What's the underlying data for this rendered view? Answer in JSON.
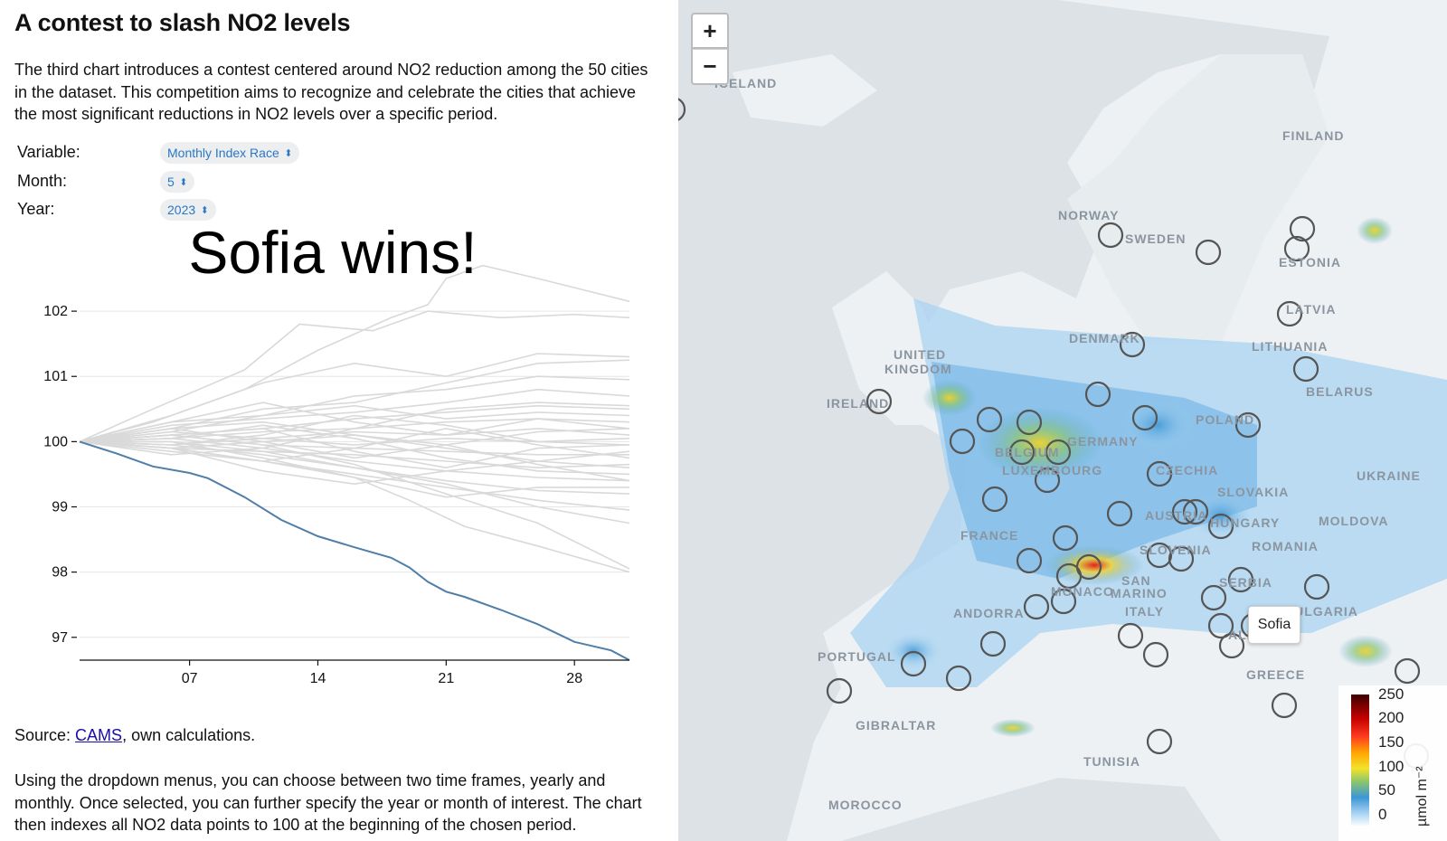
{
  "article": {
    "title": "A contest to slash NO2 levels",
    "intro": "The third chart introduces a contest centered around NO2 reduction among the 50 cities in the dataset. This competition aims to recognize and celebrate the cities that achieve the most significant reductions in NO2 levels over a specific period.",
    "source_prefix": "Source: ",
    "source_link": "CAMS",
    "source_suffix": ", own calculations.",
    "outro": "Using the dropdown menus, you can choose between two time frames, yearly and monthly. Once selected, you can further specify the year or month of interest. The chart then indexes all NO2 data points to 100 at the beginning of the chosen period."
  },
  "controls": {
    "variable_label": "Variable:",
    "variable_value": "Monthly Index Race",
    "month_label": "Month:",
    "month_value": "5",
    "year_label": "Year:",
    "year_value": "2023"
  },
  "chart_data": {
    "type": "line",
    "winner_text": "Sofia wins!",
    "x_ticks": [
      "07",
      "14",
      "21",
      "28"
    ],
    "x_range": [
      1,
      31
    ],
    "y_ticks": [
      97,
      98,
      99,
      100,
      101,
      102
    ],
    "y_range": [
      96.65,
      102.75
    ],
    "highlight_color": "#4f7ea8",
    "other_color": "#d9d9d9",
    "highlight": {
      "name": "Sofia",
      "x": [
        1,
        3,
        5,
        7,
        8,
        10,
        12,
        14,
        16,
        18,
        19,
        20,
        21,
        22,
        24,
        26,
        28,
        30,
        31
      ],
      "y": [
        100,
        99.82,
        99.62,
        99.52,
        99.44,
        99.15,
        98.8,
        98.55,
        98.38,
        98.22,
        98.07,
        97.85,
        97.7,
        97.62,
        97.42,
        97.2,
        96.93,
        96.8,
        96.65
      ]
    },
    "others": [
      {
        "x": [
          1,
          5,
          10,
          14,
          18,
          20,
          21,
          23,
          26,
          31
        ],
        "y": [
          100,
          100.3,
          100.8,
          101.4,
          101.9,
          102.1,
          102.5,
          102.7,
          102.5,
          102.15
        ]
      },
      {
        "x": [
          1,
          5,
          10,
          13,
          17,
          20,
          24,
          28,
          31
        ],
        "y": [
          100,
          100.5,
          101.1,
          101.8,
          101.7,
          102.0,
          101.9,
          101.95,
          101.9
        ]
      },
      {
        "x": [
          1,
          6,
          11,
          16,
          21,
          26,
          31
        ],
        "y": [
          100,
          100.4,
          100.9,
          101.2,
          101.0,
          101.35,
          101.3
        ]
      },
      {
        "x": [
          1,
          6,
          11,
          16,
          21,
          26,
          31
        ],
        "y": [
          100,
          100.2,
          100.5,
          100.6,
          100.9,
          101.2,
          101.25
        ]
      },
      {
        "x": [
          1,
          6,
          11,
          16,
          21,
          26,
          31
        ],
        "y": [
          100,
          100.3,
          100.4,
          100.7,
          100.8,
          101.0,
          100.95
        ]
      },
      {
        "x": [
          1,
          6,
          11,
          16,
          21,
          26,
          31
        ],
        "y": [
          100,
          100.25,
          100.35,
          100.45,
          100.6,
          100.8,
          100.7
        ]
      },
      {
        "x": [
          1,
          6,
          11,
          16,
          21,
          26,
          31
        ],
        "y": [
          100,
          100.1,
          100.2,
          100.35,
          100.45,
          100.55,
          100.5
        ]
      },
      {
        "x": [
          1,
          6,
          11,
          16,
          21,
          26,
          31
        ],
        "y": [
          100,
          100.05,
          100.15,
          100.2,
          100.3,
          100.35,
          100.3
        ]
      },
      {
        "x": [
          1,
          6,
          11,
          16,
          21,
          26,
          31
        ],
        "y": [
          100,
          100.15,
          100.05,
          100.15,
          100.1,
          100.2,
          100.1
        ]
      },
      {
        "x": [
          1,
          6,
          11,
          16,
          21,
          26,
          31
        ],
        "y": [
          100,
          99.95,
          100.05,
          99.95,
          100.05,
          100.0,
          99.95
        ]
      },
      {
        "x": [
          1,
          6,
          11,
          16,
          21,
          26,
          31
        ],
        "y": [
          100,
          100.1,
          99.95,
          99.9,
          99.85,
          99.8,
          99.8
        ]
      },
      {
        "x": [
          1,
          6,
          11,
          16,
          21,
          26,
          31
        ],
        "y": [
          100,
          99.9,
          99.85,
          99.8,
          99.7,
          99.6,
          99.65
        ]
      },
      {
        "x": [
          1,
          6,
          11,
          16,
          21,
          26,
          31
        ],
        "y": [
          100,
          100.05,
          99.9,
          99.7,
          99.55,
          99.45,
          99.4
        ]
      },
      {
        "x": [
          1,
          6,
          11,
          16,
          21,
          26,
          31
        ],
        "y": [
          100,
          99.95,
          99.8,
          99.6,
          99.4,
          99.25,
          99.2
        ]
      },
      {
        "x": [
          1,
          6,
          11,
          16,
          21,
          26,
          31
        ],
        "y": [
          100,
          99.9,
          99.7,
          99.5,
          99.3,
          99.1,
          98.95
        ]
      },
      {
        "x": [
          1,
          6,
          11,
          16,
          21,
          26,
          31
        ],
        "y": [
          100,
          100.0,
          99.85,
          99.6,
          99.35,
          99.0,
          98.75
        ]
      },
      {
        "x": [
          1,
          6,
          11,
          16,
          19,
          22,
          26,
          31
        ],
        "y": [
          100,
          99.9,
          99.7,
          99.45,
          99.1,
          98.7,
          98.4,
          98.0
        ]
      },
      {
        "x": [
          1,
          6,
          11,
          16,
          21,
          26,
          31
        ],
        "y": [
          100,
          100.1,
          99.95,
          99.65,
          99.2,
          98.75,
          98.05
        ]
      },
      {
        "x": [
          1,
          6,
          11,
          16,
          21,
          26,
          31
        ],
        "y": [
          100,
          100.2,
          100.3,
          100.1,
          99.9,
          99.7,
          99.85
        ]
      },
      {
        "x": [
          1,
          6,
          11,
          16,
          21,
          26,
          31
        ],
        "y": [
          100,
          100.3,
          100.6,
          100.3,
          100.1,
          100.35,
          100.2
        ]
      },
      {
        "x": [
          1,
          6,
          11,
          16,
          21,
          26,
          31
        ],
        "y": [
          100,
          99.8,
          99.9,
          100.2,
          100.5,
          100.6,
          100.55
        ]
      },
      {
        "x": [
          1,
          6,
          11,
          16,
          21,
          26,
          31
        ],
        "y": [
          100,
          99.85,
          99.7,
          99.9,
          100.2,
          99.95,
          99.75
        ]
      },
      {
        "x": [
          1,
          6,
          11,
          16,
          21,
          26,
          31
        ],
        "y": [
          100,
          100.05,
          100.25,
          100.05,
          99.75,
          99.55,
          99.5
        ]
      },
      {
        "x": [
          1,
          6,
          11,
          16,
          21,
          26,
          31
        ],
        "y": [
          100,
          99.95,
          100.1,
          100.4,
          100.25,
          100.0,
          100.05
        ]
      },
      {
        "x": [
          1,
          6,
          11,
          16,
          21,
          26,
          31
        ],
        "y": [
          100,
          100.15,
          100.4,
          100.55,
          100.35,
          100.45,
          100.4
        ]
      },
      {
        "x": [
          1,
          6,
          11,
          16,
          21,
          26,
          31
        ],
        "y": [
          100,
          99.9,
          99.55,
          99.35,
          99.55,
          99.7,
          99.6
        ]
      },
      {
        "x": [
          1,
          6,
          11,
          16,
          21,
          26,
          31
        ],
        "y": [
          100,
          100.0,
          99.75,
          99.45,
          99.15,
          99.3,
          99.3
        ]
      },
      {
        "x": [
          1,
          6,
          11,
          16,
          21,
          26,
          31
        ],
        "y": [
          100,
          100.1,
          100.2,
          99.85,
          99.6,
          99.9,
          99.95
        ]
      },
      {
        "x": [
          1,
          6,
          11,
          16,
          21,
          26,
          31
        ],
        "y": [
          100,
          99.9,
          100.0,
          100.1,
          99.95,
          100.15,
          100.2
        ]
      },
      {
        "x": [
          1,
          6,
          11,
          16,
          21,
          26,
          31
        ],
        "y": [
          100,
          100.2,
          100.0,
          99.75,
          99.95,
          99.65,
          99.4
        ]
      }
    ]
  },
  "map": {
    "zoom_in": "+",
    "zoom_out": "−",
    "tooltip": "Sofia",
    "legend": {
      "ticks": [
        "250",
        "200",
        "150",
        "100",
        "50",
        "0"
      ],
      "unit": "µmol m⁻²"
    },
    "countries": [
      {
        "name": "FINLAND"
      },
      {
        "name": "NORWAY"
      },
      {
        "name": "SWEDEN"
      },
      {
        "name": "ESTONIA"
      },
      {
        "name": "LATVIA"
      },
      {
        "name": "LITHUANIA"
      },
      {
        "name": "DENMARK"
      },
      {
        "name": "BELARUS"
      },
      {
        "name": "UNITED"
      },
      {
        "name": "KINGDOM"
      },
      {
        "name": "IRELAND"
      },
      {
        "name": "POLAND"
      },
      {
        "name": "GERMANY"
      },
      {
        "name": "BELGIUM"
      },
      {
        "name": "LUXEMBOURG"
      },
      {
        "name": "CZECHIA"
      },
      {
        "name": "UKRAINE"
      },
      {
        "name": "SLOVAKIA"
      },
      {
        "name": "MOLDOVA"
      },
      {
        "name": "AUSTRIA"
      },
      {
        "name": "HUNGARY"
      },
      {
        "name": "FRANCE"
      },
      {
        "name": "ROMANIA"
      },
      {
        "name": "SLOVENIA"
      },
      {
        "name": "SERBIA"
      },
      {
        "name": "SAN"
      },
      {
        "name": "MARINO"
      },
      {
        "name": "MONACO"
      },
      {
        "name": "BULGARIA"
      },
      {
        "name": "ANDORRA"
      },
      {
        "name": "ITALY"
      },
      {
        "name": "ALBANIA"
      },
      {
        "name": "PORTUGAL"
      },
      {
        "name": "GREECE"
      },
      {
        "name": "GIBRALTAR"
      },
      {
        "name": "TUNISIA"
      },
      {
        "name": "MOROCCO"
      },
      {
        "name": "ICELAND"
      }
    ]
  }
}
